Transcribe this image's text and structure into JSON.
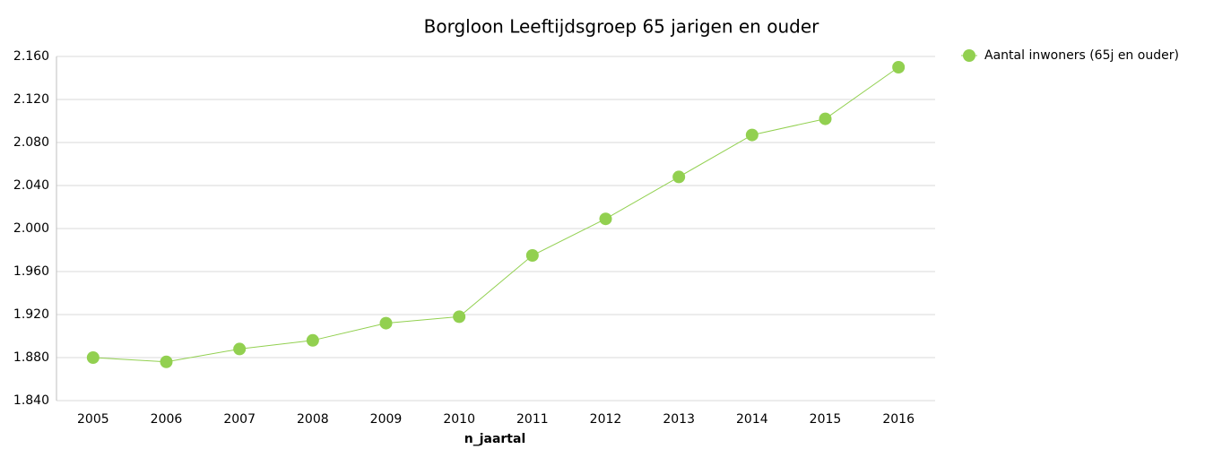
{
  "chart_data": {
    "type": "line",
    "title": "Borgloon  Leeftijdsgroep 65 jarigen en ouder",
    "x_label": "n_jaartal",
    "categories": [
      "2005",
      "2006",
      "2007",
      "2008",
      "2009",
      "2010",
      "2011",
      "2012",
      "2013",
      "2014",
      "2015",
      "2016"
    ],
    "series": [
      {
        "name": "Aantal inwoners (65j en ouder)",
        "color": "#92d050",
        "values": [
          1880,
          1876,
          1888,
          1896,
          1912,
          1918,
          1975,
          2009,
          2048,
          2087,
          2102,
          2150
        ]
      }
    ],
    "ylim": [
      1840,
      2160
    ],
    "yticks": [
      {
        "value": 1840,
        "label": "1.840"
      },
      {
        "value": 1880,
        "label": "1.880"
      },
      {
        "value": 1920,
        "label": "1.920"
      },
      {
        "value": 1960,
        "label": "1.960"
      },
      {
        "value": 2000,
        "label": "2.000"
      },
      {
        "value": 2040,
        "label": "2.040"
      },
      {
        "value": 2080,
        "label": "2.080"
      },
      {
        "value": 2120,
        "label": "2.120"
      },
      {
        "value": 2160,
        "label": "2.160"
      }
    ],
    "grid": true,
    "legend": "top-right"
  }
}
